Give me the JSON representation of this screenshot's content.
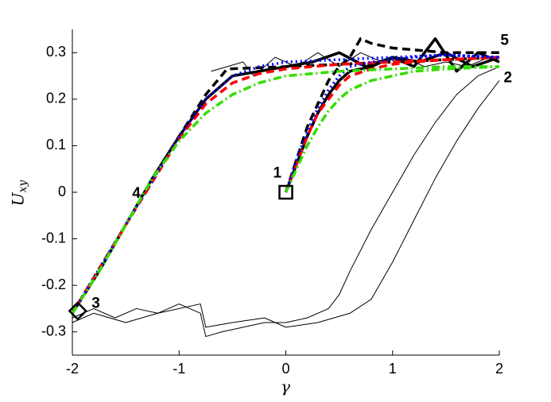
{
  "chart_data": {
    "type": "line",
    "xlabel": "γ",
    "ylabel": "U_xy",
    "xlim": [
      -2,
      2
    ],
    "ylim": [
      -0.35,
      0.35
    ],
    "xticks": [
      -2,
      -1,
      0,
      1,
      2
    ],
    "yticks": [
      -0.3,
      -0.2,
      -0.1,
      0,
      0.1,
      0.2,
      0.3
    ],
    "series": [
      {
        "color": "#000000",
        "dash": "solid",
        "weight": "thin",
        "x": [
          -2,
          -1.8,
          -1.6,
          -1.4,
          -1.2,
          -1.0,
          -0.8,
          -0.75,
          -0.6,
          -0.4,
          -0.2,
          0,
          0.2,
          0.4,
          0.5,
          0.6,
          0.8,
          1.0,
          1.2,
          1.4,
          1.6,
          1.8,
          2.0
        ],
        "values": [
          -0.27,
          -0.25,
          -0.27,
          -0.25,
          -0.26,
          -0.24,
          -0.26,
          -0.31,
          -0.3,
          -0.29,
          -0.28,
          -0.28,
          -0.27,
          -0.25,
          -0.22,
          -0.17,
          -0.08,
          0.0,
          0.08,
          0.15,
          0.21,
          0.25,
          0.27
        ]
      },
      {
        "color": "#000000",
        "dash": "solid",
        "weight": "thin",
        "x": [
          -2,
          -1.8,
          -1.5,
          -1.2,
          -0.8,
          -0.75,
          -0.5,
          -0.2,
          0,
          0.3,
          0.6,
          0.8,
          1.0,
          1.2,
          1.4,
          1.6,
          1.8,
          2.0
        ],
        "values": [
          -0.28,
          -0.26,
          -0.28,
          -0.26,
          -0.24,
          -0.29,
          -0.28,
          -0.27,
          -0.29,
          -0.28,
          -0.26,
          -0.23,
          -0.15,
          -0.06,
          0.03,
          0.11,
          0.18,
          0.24
        ]
      },
      {
        "color": "#000000",
        "dash": "solid",
        "weight": "thin",
        "x": [
          -0.7,
          -0.4,
          -0.3,
          -0.1,
          0.1,
          0.3,
          0.5,
          0.7,
          0.9,
          1.1,
          1.3,
          1.5,
          1.7,
          1.9,
          2.0
        ],
        "values": [
          0.26,
          0.28,
          0.25,
          0.29,
          0.27,
          0.3,
          0.27,
          0.3,
          0.28,
          0.29,
          0.27,
          0.28,
          0.27,
          0.29,
          0.28
        ]
      },
      {
        "color": "#000000",
        "dash": "solid",
        "weight": "thick",
        "x": [
          -2,
          -1.75,
          -1.5,
          -1.25,
          -1,
          -0.75,
          -0.5,
          -0.25,
          0,
          0.25,
          0.5,
          0.75,
          1,
          1.25,
          1.5,
          1.75,
          2
        ],
        "values": [
          -0.26,
          -0.17,
          -0.07,
          0.03,
          0.12,
          0.2,
          0.25,
          0.26,
          0.27,
          0.28,
          0.3,
          0.27,
          0.29,
          0.28,
          0.3,
          0.27,
          0.29
        ]
      },
      {
        "color": "#000000",
        "dash": "solid",
        "weight": "thick",
        "x": [
          0,
          0.1,
          0.2,
          0.3,
          0.4,
          0.5,
          0.6,
          0.8,
          1.0,
          1.2,
          1.4,
          1.6,
          1.8,
          2.0
        ],
        "values": [
          0,
          0.06,
          0.12,
          0.17,
          0.21,
          0.24,
          0.26,
          0.27,
          0.29,
          0.27,
          0.33,
          0.26,
          0.3,
          0.28
        ]
      },
      {
        "color": "#000000",
        "dash": "dashed",
        "weight": "thick",
        "x": [
          -2,
          -1.5,
          -1,
          -0.75,
          -0.55,
          0,
          0.5,
          1.0,
          1.5,
          2.0
        ],
        "values": [
          -0.26,
          -0.07,
          0.12,
          0.21,
          0.265,
          0.27,
          0.275,
          0.28,
          0.285,
          0.29
        ]
      },
      {
        "color": "#000000",
        "dash": "dashed",
        "weight": "thick",
        "x": [
          0,
          0.1,
          0.2,
          0.3,
          0.4,
          0.5,
          0.6,
          0.7,
          0.8,
          1.0,
          1.5,
          2.0
        ],
        "values": [
          0,
          0.07,
          0.14,
          0.19,
          0.24,
          0.27,
          0.29,
          0.33,
          0.32,
          0.31,
          0.3,
          0.3
        ]
      },
      {
        "color": "#ff0000",
        "dash": "dashed",
        "weight": "thick",
        "x": [
          -2,
          -1.5,
          -1,
          -0.75,
          -0.5,
          -0.25,
          0,
          0.5,
          1.0,
          1.5,
          2.0
        ],
        "values": [
          -0.26,
          -0.07,
          0.115,
          0.19,
          0.235,
          0.255,
          0.265,
          0.275,
          0.28,
          0.285,
          0.29
        ]
      },
      {
        "color": "#ff0000",
        "dash": "dashed",
        "weight": "thick",
        "x": [
          0,
          0.1,
          0.2,
          0.3,
          0.4,
          0.5,
          0.6,
          0.8,
          1.0,
          1.2,
          1.5,
          2.0
        ],
        "values": [
          0,
          0.06,
          0.12,
          0.17,
          0.2,
          0.23,
          0.25,
          0.265,
          0.275,
          0.28,
          0.285,
          0.29
        ]
      },
      {
        "color": "#0000ff",
        "dash": "dotted",
        "weight": "thick",
        "x": [
          -2,
          -1.5,
          -1,
          -0.75,
          -0.5,
          -0.25,
          0,
          0.5,
          1.0,
          1.5,
          2.0
        ],
        "values": [
          -0.26,
          -0.07,
          0.12,
          0.2,
          0.25,
          0.27,
          0.28,
          0.285,
          0.29,
          0.295,
          0.29
        ]
      },
      {
        "color": "#0000ff",
        "dash": "dotted",
        "weight": "thick",
        "x": [
          0,
          0.1,
          0.2,
          0.3,
          0.4,
          0.5,
          0.6,
          0.8,
          1.0,
          1.2,
          1.5,
          2.0
        ],
        "values": [
          0,
          0.07,
          0.13,
          0.18,
          0.22,
          0.25,
          0.27,
          0.28,
          0.285,
          0.29,
          0.295,
          0.29
        ]
      },
      {
        "color": "#33dd00",
        "dash": "dashdot",
        "weight": "thick",
        "x": [
          -2,
          -1.75,
          -1.5,
          -1.25,
          -1,
          -0.75,
          -0.5,
          -0.25,
          0,
          0.5,
          1.0,
          1.5,
          2.0
        ],
        "values": [
          -0.26,
          -0.17,
          -0.07,
          0.03,
          0.11,
          0.17,
          0.21,
          0.235,
          0.25,
          0.26,
          0.265,
          0.27,
          0.27
        ]
      },
      {
        "color": "#33dd00",
        "dash": "dashdot",
        "weight": "thick",
        "x": [
          0,
          0.1,
          0.2,
          0.3,
          0.4,
          0.5,
          0.6,
          0.8,
          1.0,
          1.2,
          1.5,
          2.0
        ],
        "values": [
          0,
          0.05,
          0.1,
          0.14,
          0.175,
          0.2,
          0.22,
          0.24,
          0.25,
          0.26,
          0.265,
          0.27
        ]
      }
    ],
    "markers": [
      {
        "shape": "square",
        "x": 0,
        "y": 0
      },
      {
        "shape": "diamond",
        "x": -1.95,
        "y": -0.255
      }
    ],
    "annotations": [
      {
        "text": "1",
        "x": -0.08,
        "y": 0.04,
        "size": "large"
      },
      {
        "text": "2",
        "x": 2.08,
        "y": 0.245,
        "size": "large"
      },
      {
        "text": "3",
        "x": -1.78,
        "y": -0.24,
        "size": "small"
      },
      {
        "text": "4",
        "x": -1.4,
        "y": -0.003,
        "size": "small"
      },
      {
        "text": "5",
        "x": 2.05,
        "y": 0.325,
        "size": "small"
      }
    ]
  }
}
